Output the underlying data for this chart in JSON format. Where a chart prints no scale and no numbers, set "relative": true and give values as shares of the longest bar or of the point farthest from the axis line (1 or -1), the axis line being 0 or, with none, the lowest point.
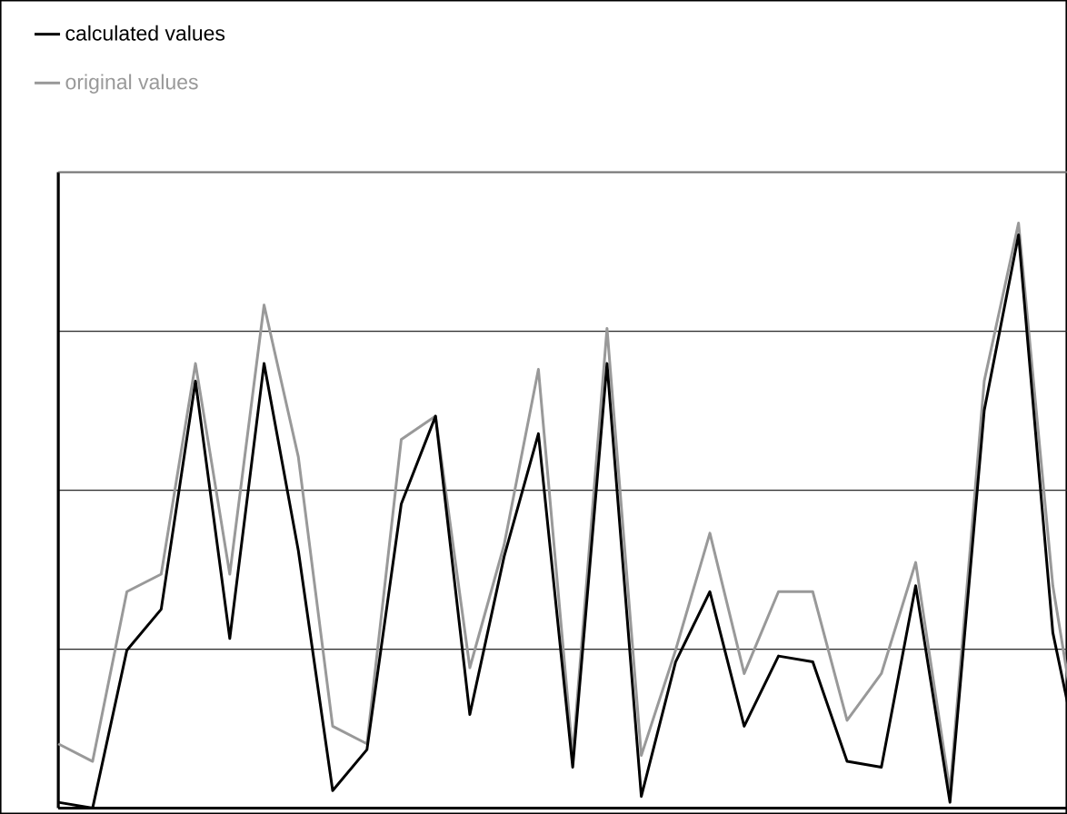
{
  "chart_data": {
    "type": "line",
    "relative": true,
    "grid": "y",
    "legend": "top left",
    "tick_labels": false,
    "marker": "none",
    "line_style": "solid",
    "categories": [
      null,
      null,
      null,
      null,
      null,
      null,
      null,
      null,
      null,
      null,
      null,
      null,
      null,
      null,
      null,
      null,
      null,
      null,
      null,
      null,
      null,
      null,
      null,
      null,
      null,
      null,
      null,
      null,
      null,
      null,
      null
    ],
    "series": [
      {
        "name": "calculated values",
        "color": "#000000",
        "values": [
          0.01,
          0.0,
          0.27,
          0.34,
          0.73,
          0.29,
          0.76,
          0.44,
          0.03,
          0.1,
          0.52,
          0.67,
          0.16,
          0.43,
          0.64,
          0.07,
          0.76,
          0.02,
          0.25,
          0.37,
          0.14,
          0.26,
          0.25,
          0.08,
          0.07,
          0.38,
          0.01,
          0.68,
          0.98,
          0.3,
          0.02
        ]
      },
      {
        "name": "original values",
        "color": "#999999",
        "values": [
          0.11,
          0.08,
          0.37,
          0.4,
          0.76,
          0.4,
          0.86,
          0.6,
          0.14,
          0.11,
          0.63,
          0.67,
          0.24,
          0.45,
          0.75,
          0.09,
          0.82,
          0.09,
          0.27,
          0.47,
          0.23,
          0.37,
          0.37,
          0.15,
          0.23,
          0.42,
          0.03,
          0.73,
          1.0,
          0.38,
          0.02
        ]
      }
    ]
  }
}
